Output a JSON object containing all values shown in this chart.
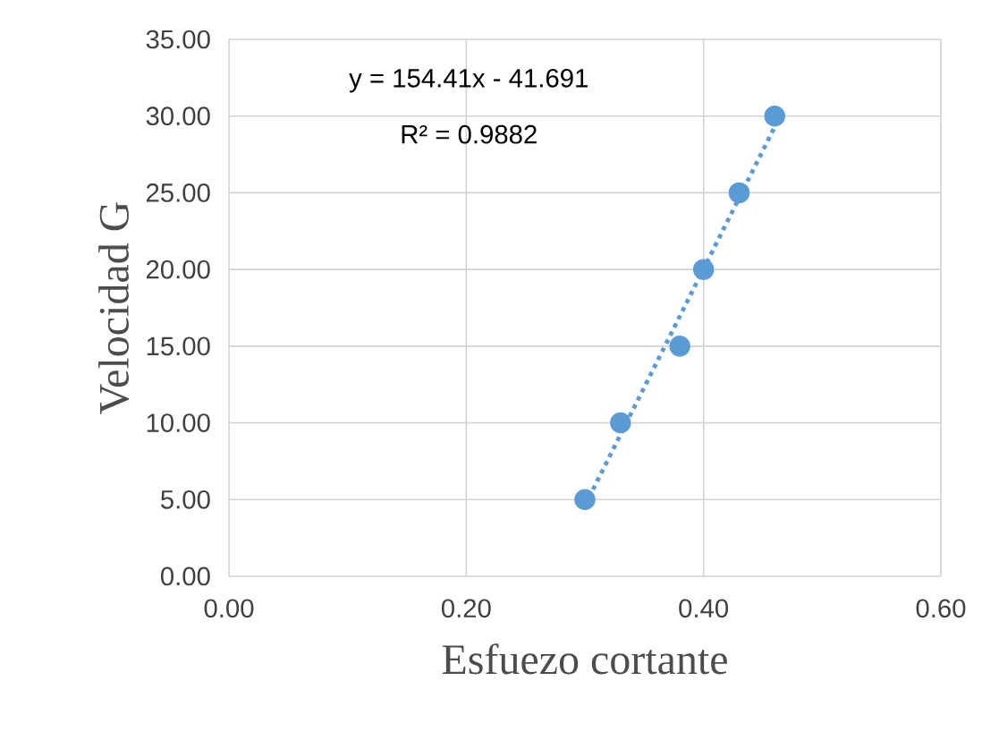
{
  "chart_data": {
    "type": "scatter",
    "xlabel": "Esfuezo cortante",
    "ylabel": "Velocidad G",
    "xlim": [
      0,
      0.6
    ],
    "xticks": [
      {
        "value": 0,
        "label": "0.00"
      },
      {
        "value": 0.2,
        "label": "0.20"
      },
      {
        "value": 0.4,
        "label": "0.40"
      },
      {
        "value": 0.6,
        "label": "0.60"
      }
    ],
    "ylim": [
      0,
      35
    ],
    "yticks": [
      {
        "value": 0,
        "label": "0.00"
      },
      {
        "value": 5,
        "label": "5.00"
      },
      {
        "value": 10,
        "label": "10.00"
      },
      {
        "value": 15,
        "label": "15.00"
      },
      {
        "value": 20,
        "label": "20.00"
      },
      {
        "value": 25,
        "label": "25.00"
      },
      {
        "value": 30,
        "label": "30.00"
      },
      {
        "value": 35,
        "label": "35.00"
      }
    ],
    "grid": true,
    "series": [
      {
        "color": "#5b9bd5",
        "marker": "circle",
        "x": [
          0.3,
          0.33,
          0.38,
          0.4,
          0.43,
          0.46
        ],
        "values": [
          5,
          10,
          15,
          20,
          25,
          30
        ]
      },
      {
        "type": "line",
        "color": "#5b9bd5",
        "line_style": "dotted",
        "marker": "none",
        "x": [
          0.3,
          0.46
        ],
        "values": [
          4.6,
          29.3
        ]
      }
    ],
    "annotations": [
      "y = 154.41x - 41.691",
      "R² = 0.9882"
    ]
  }
}
